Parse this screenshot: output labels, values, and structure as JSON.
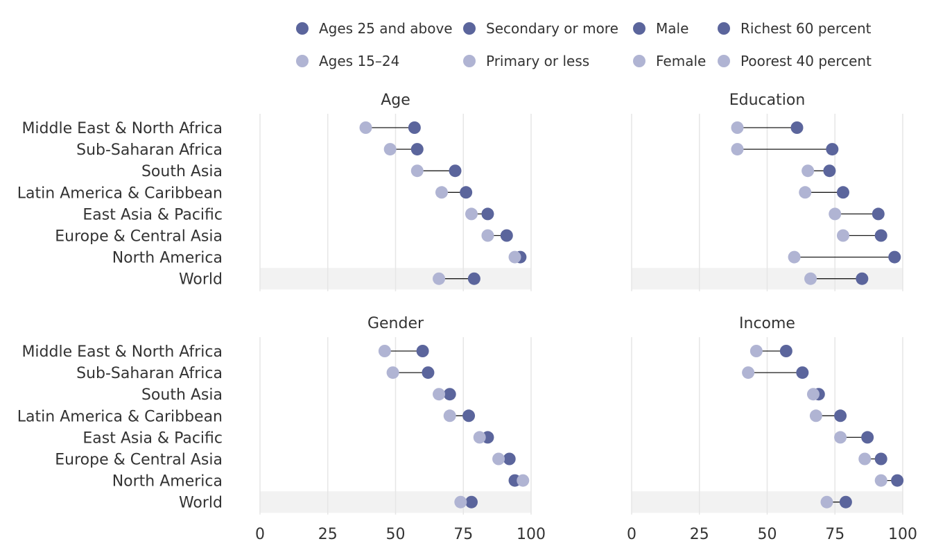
{
  "chart_data": {
    "type": "dumbbell",
    "xlim": [
      0,
      100
    ],
    "x_ticks": [
      "0",
      "25",
      "50",
      "75",
      "100"
    ],
    "colors": {
      "dark": "#5b659c",
      "light": "#b0b4d3",
      "highlight_band": "#f2f2f2",
      "gridline": "#e6e6e6",
      "connector": "#1a1a1a"
    },
    "legend": {
      "placement": "top",
      "dark": [
        "Ages 25 and above",
        "Secondary or more",
        "Male",
        "Richest 60 percent"
      ],
      "light": [
        "Ages 15–24",
        "Primary or less",
        "Female",
        "Poorest 40 percent"
      ]
    },
    "categories": [
      "Middle East & North Africa",
      "Sub-Saharan Africa",
      "South Asia",
      "Latin America & Caribbean",
      "East Asia & Pacific",
      "Europe & Central Asia",
      "North America",
      "World"
    ],
    "highlight_category": "World",
    "panels": [
      {
        "title": "Age",
        "series": [
          {
            "name": "Ages 25 and above",
            "color": "dark",
            "values": [
              57,
              58,
              72,
              76,
              84,
              91,
              96,
              79
            ]
          },
          {
            "name": "Ages 15–24",
            "color": "light",
            "values": [
              39,
              48,
              58,
              67,
              78,
              84,
              94,
              66
            ]
          }
        ]
      },
      {
        "title": "Education",
        "series": [
          {
            "name": "Secondary or more",
            "color": "dark",
            "values": [
              61,
              74,
              73,
              78,
              91,
              92,
              97,
              85
            ]
          },
          {
            "name": "Primary or less",
            "color": "light",
            "values": [
              39,
              39,
              65,
              64,
              75,
              78,
              60,
              66
            ]
          }
        ]
      },
      {
        "title": "Gender",
        "series": [
          {
            "name": "Male",
            "color": "dark",
            "values": [
              60,
              62,
              70,
              77,
              84,
              92,
              94,
              78
            ]
          },
          {
            "name": "Female",
            "color": "light",
            "values": [
              46,
              49,
              66,
              70,
              81,
              88,
              97,
              74
            ]
          }
        ]
      },
      {
        "title": "Income",
        "series": [
          {
            "name": "Richest 60 percent",
            "color": "dark",
            "values": [
              57,
              63,
              69,
              77,
              87,
              92,
              98,
              79
            ]
          },
          {
            "name": "Poorest 40 percent",
            "color": "light",
            "values": [
              46,
              43,
              67,
              68,
              77,
              86,
              92,
              72
            ]
          }
        ]
      }
    ]
  }
}
